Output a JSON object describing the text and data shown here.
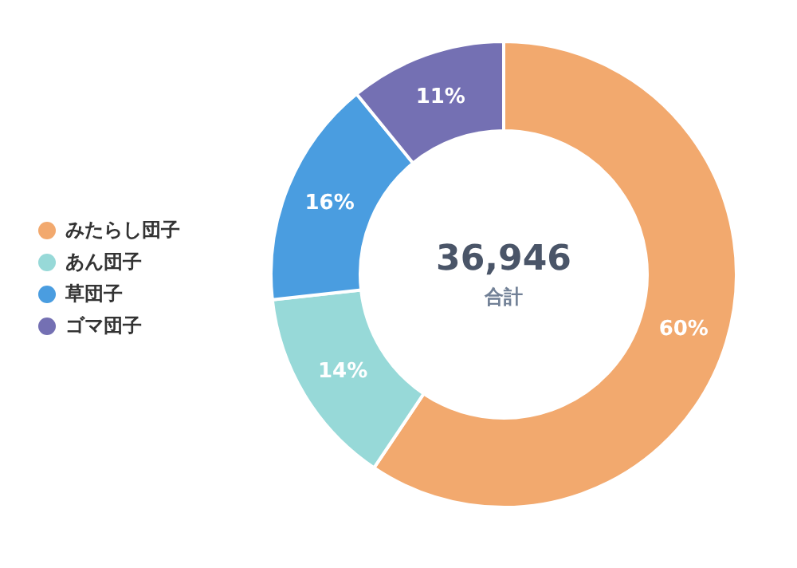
{
  "chart_data": {
    "type": "donut",
    "categories": [
      "みたらし団子",
      "あん団子",
      "草団子",
      "ゴマ団子"
    ],
    "values": [
      60,
      14,
      16,
      11
    ],
    "colors": [
      "#f2a96e",
      "#97d9d8",
      "#4a9de0",
      "#7470b3"
    ],
    "value_labels": [
      "60%",
      "14%",
      "16%",
      "11%"
    ],
    "legend": "left",
    "annotations": [
      "36,946",
      "合計"
    ]
  }
}
